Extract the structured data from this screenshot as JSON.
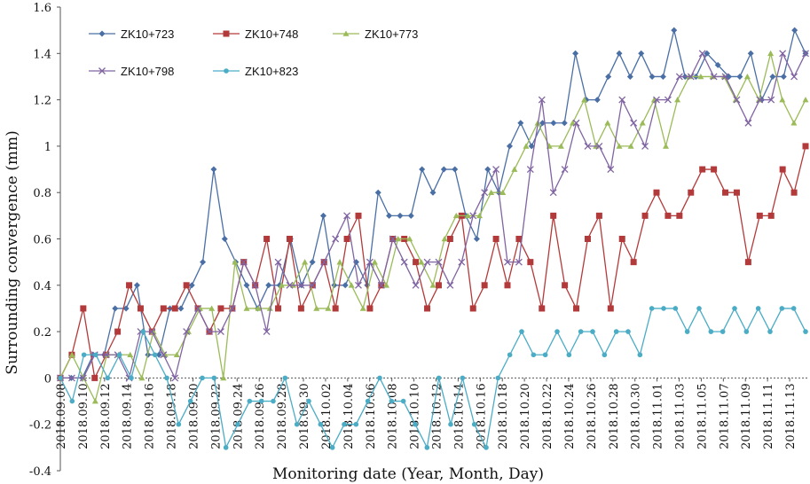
{
  "chart_data": {
    "type": "line",
    "xlabel": "Monitoring date (Year, Month, Day)",
    "ylabel": "Surrounding convergence (mm)",
    "ylim": [
      -0.4,
      1.6
    ],
    "y_ticks": [
      "-0.4",
      "-0.2",
      "0",
      "0.2",
      "0.4",
      "0.6",
      "0.8",
      "1",
      "1.2",
      "1.4",
      "1.6"
    ],
    "x_tick_labels": [
      "2018.09.08",
      "2018.09.10",
      "2018.09.12",
      "2018.09.14",
      "2018.09.16",
      "2018.09.18",
      "2018.09.20",
      "2018.09.22",
      "2018.09.24",
      "2018.09.26",
      "2018.09.28",
      "2018.09.30",
      "2018.10.02",
      "2018.10.04",
      "2018.10.06",
      "2018.10.08",
      "2018.10.10",
      "2018.10.12",
      "2018.10.14",
      "2018.10.16",
      "2018.10.18",
      "2018.10.20",
      "2018.10.22",
      "2018.10.24",
      "2018.10.26",
      "2018.10.28",
      "2018.10.30",
      "2018.11.01",
      "2018.11.03",
      "2018.11.05",
      "2018.11.07",
      "2018.11.09",
      "2018.11.11",
      "2018.11.13"
    ],
    "grid": false,
    "legend": "top-left",
    "series": [
      {
        "name": "ZK10+723",
        "color": "#4a6fa5",
        "marker": "diamond",
        "values": [
          0,
          0,
          0,
          0.1,
          0.1,
          0.3,
          0.3,
          0.4,
          0.1,
          0.1,
          0.3,
          0.3,
          0.4,
          0.5,
          0.9,
          0.6,
          0.5,
          0.4,
          0.3,
          0.4,
          0.4,
          0.6,
          0.4,
          0.5,
          0.7,
          0.4,
          0.4,
          0.5,
          0.4,
          0.8,
          0.7,
          0.7,
          0.7,
          0.9,
          0.8,
          0.9,
          0.9,
          0.7,
          0.6,
          0.9,
          0.8,
          1.0,
          1.1,
          1.0,
          1.1,
          1.1,
          1.1,
          1.4,
          1.2,
          1.2,
          1.3,
          1.4,
          1.3,
          1.4,
          1.3,
          1.3,
          1.5,
          1.3,
          1.3,
          1.4,
          1.35,
          1.3,
          1.3,
          1.4,
          1.2,
          1.3,
          1.3,
          1.5,
          1.4
        ]
      },
      {
        "name": "ZK10+748",
        "color": "#b33a3a",
        "marker": "square",
        "values": [
          0,
          0.1,
          0.3,
          0,
          0.1,
          0.2,
          0.4,
          0.3,
          0.2,
          0.3,
          0.3,
          0.4,
          0.3,
          0.2,
          0.3,
          0.3,
          0.5,
          0.4,
          0.6,
          0.3,
          0.6,
          0.3,
          0.4,
          0.5,
          0.3,
          0.6,
          0.7,
          0.3,
          0.4,
          0.6,
          0.6,
          0.5,
          0.3,
          0.4,
          0.6,
          0.7,
          0.3,
          0.4,
          0.6,
          0.4,
          0.6,
          0.5,
          0.3,
          0.7,
          0.4,
          0.3,
          0.6,
          0.7,
          0.3,
          0.6,
          0.5,
          0.7,
          0.8,
          0.7,
          0.7,
          0.8,
          0.9,
          0.9,
          0.8,
          0.8,
          0.5,
          0.7,
          0.7,
          0.9,
          0.8,
          1.0
        ]
      },
      {
        "name": "ZK10+773",
        "color": "#9bbb59",
        "marker": "triangle",
        "values": [
          0,
          0.1,
          0,
          -0.1,
          0.1,
          0.1,
          0.1,
          0,
          0.2,
          0.1,
          0.1,
          0.2,
          0.3,
          0.3,
          0,
          0.5,
          0.3,
          0.3,
          0.3,
          0.4,
          0.4,
          0.5,
          0.3,
          0.3,
          0.5,
          0.4,
          0.3,
          0.5,
          0.4,
          0.6,
          0.6,
          0.5,
          0.4,
          0.6,
          0.7,
          0.7,
          0.7,
          0.8,
          0.8,
          0.9,
          1.0,
          1.1,
          1.0,
          1.0,
          1.1,
          1.2,
          1.0,
          1.1,
          1.0,
          1.0,
          1.1,
          1.2,
          1.0,
          1.2,
          1.3,
          1.3,
          1.3,
          1.3,
          1.2,
          1.3,
          1.2,
          1.4,
          1.2,
          1.1,
          1.2
        ]
      },
      {
        "name": "ZK10+798",
        "color": "#8064a2",
        "marker": "x",
        "values": [
          0,
          0,
          0,
          0.1,
          0.1,
          0.1,
          0,
          0.2,
          0.2,
          0.1,
          0,
          0.2,
          0.3,
          0.2,
          0.2,
          0.3,
          0.5,
          0.4,
          0.2,
          0.5,
          0.4,
          0.4,
          0.4,
          0.5,
          0.6,
          0.7,
          0.4,
          0.5,
          0.4,
          0.6,
          0.5,
          0.4,
          0.5,
          0.5,
          0.4,
          0.5,
          0.7,
          0.8,
          0.9,
          0.5,
          0.5,
          0.9,
          1.2,
          0.8,
          0.9,
          1.1,
          1.0,
          1.0,
          0.9,
          1.2,
          1.1,
          1.0,
          1.2,
          1.2,
          1.3,
          1.3,
          1.4,
          1.3,
          1.3,
          1.2,
          1.1,
          1.2,
          1.2,
          1.4,
          1.3,
          1.4
        ]
      },
      {
        "name": "ZK10+823",
        "color": "#4bacc6",
        "marker": "circle",
        "values": [
          0,
          -0.1,
          0.1,
          0.1,
          0,
          0.1,
          0,
          0.2,
          0.1,
          0,
          -0.2,
          -0.1,
          0,
          0,
          -0.3,
          -0.2,
          -0.1,
          -0.1,
          -0.1,
          0,
          -0.2,
          -0.1,
          -0.2,
          -0.3,
          -0.2,
          -0.2,
          -0.1,
          0,
          -0.1,
          -0.1,
          -0.2,
          -0.3,
          0,
          -0.2,
          0,
          -0.2,
          -0.3,
          0,
          0.1,
          0.2,
          0.1,
          0.1,
          0.2,
          0.1,
          0.2,
          0.2,
          0.1,
          0.2,
          0.2,
          0.1,
          0.3,
          0.3,
          0.3,
          0.2,
          0.3,
          0.2,
          0.2,
          0.3,
          0.2,
          0.3,
          0.2,
          0.3,
          0.3,
          0.2
        ]
      }
    ]
  }
}
